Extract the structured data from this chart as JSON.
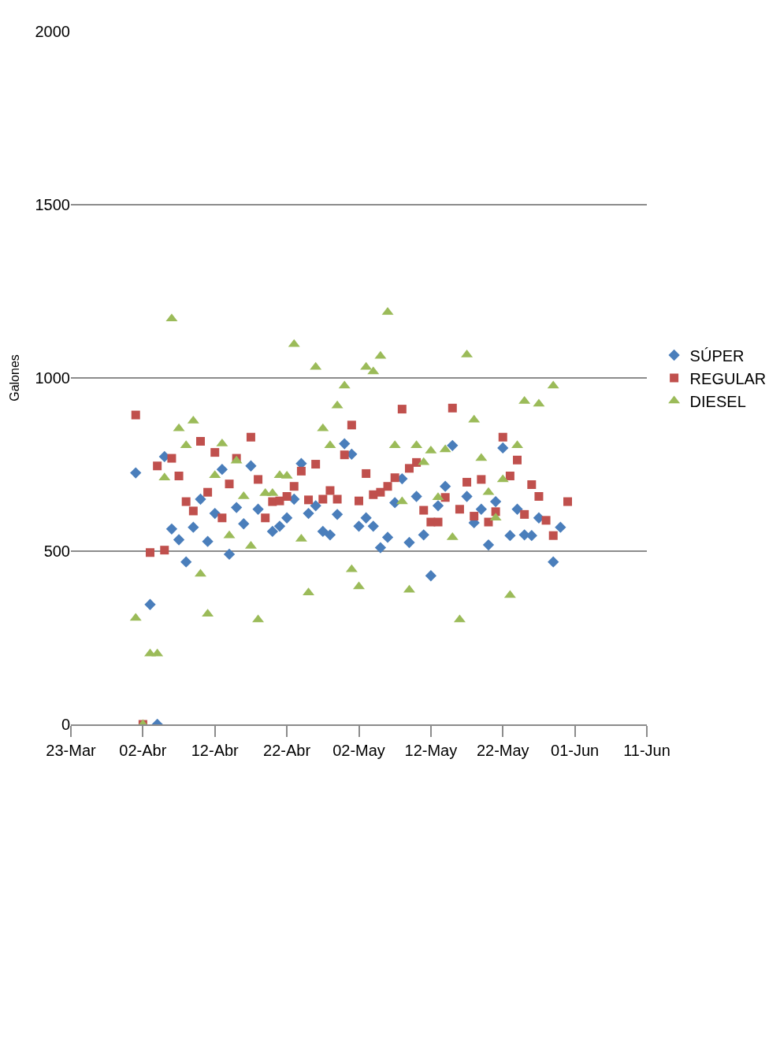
{
  "chart_data": {
    "type": "scatter",
    "ylabel": "Galones",
    "xlim": [
      "--03-23",
      "--06-11"
    ],
    "xticks": [
      {
        "value": "--03-23",
        "label": "23-Mar"
      },
      {
        "value": "--04-02",
        "label": "02-Abr"
      },
      {
        "value": "--04-12",
        "label": "12-Abr"
      },
      {
        "value": "--04-22",
        "label": "22-Abr"
      },
      {
        "value": "--05-02",
        "label": "02-May"
      },
      {
        "value": "--05-12",
        "label": "12-May"
      },
      {
        "value": "--05-22",
        "label": "22-May"
      },
      {
        "value": "--06-01",
        "label": "01-Jun"
      },
      {
        "value": "--06-11",
        "label": "11-Jun"
      }
    ],
    "ylim": [
      0,
      2000
    ],
    "yticks": [
      0,
      500,
      1000,
      1500,
      2000
    ],
    "grid": "y",
    "legend": "right",
    "series": [
      {
        "name": "SÚPER",
        "color": "#4a7ebb",
        "marker": "diamond",
        "x": [
          "--04-01",
          "--04-03",
          "--04-04",
          "--04-05",
          "--04-06",
          "--04-07",
          "--04-08",
          "--04-09",
          "--04-10",
          "--04-11",
          "--04-12",
          "--04-13",
          "--04-14",
          "--04-15",
          "--04-16",
          "--04-17",
          "--04-18",
          "--04-20",
          "--04-21",
          "--04-22",
          "--04-23",
          "--04-24",
          "--04-25",
          "--04-26",
          "--04-27",
          "--04-28",
          "--04-29",
          "--04-30",
          "--05-01",
          "--05-02",
          "--05-03",
          "--05-04",
          "--05-05",
          "--05-06",
          "--05-07",
          "--05-08",
          "--05-09",
          "--05-10",
          "--05-11",
          "--05-12",
          "--05-13",
          "--05-14",
          "--05-15",
          "--05-17",
          "--05-18",
          "--05-19",
          "--05-20",
          "--05-21",
          "--05-22",
          "--05-23",
          "--05-24",
          "--05-25",
          "--05-26",
          "--05-27",
          "--05-29",
          "--05-30"
        ],
        "values": [
          726,
          346,
          0,
          773,
          564,
          533,
          469,
          569,
          650,
          528,
          609,
          736,
          491,
          626,
          579,
          746,
          621,
          557,
          572,
          596,
          650,
          753,
          609,
          631,
          557,
          547,
          606,
          810,
          780,
          572,
          596,
          572,
          510,
          540,
          640,
          709,
          525,
          658,
          547,
          429,
          631,
          687,
          805,
          658,
          582,
          621,
          518,
          643,
          798,
          545,
          621,
          547,
          545,
          596,
          469,
          569
        ]
      },
      {
        "name": "REGULAR",
        "color": "#c0504d",
        "marker": "square",
        "x": [
          "--04-01",
          "--04-02",
          "--04-03",
          "--04-04",
          "--04-05",
          "--04-06",
          "--04-07",
          "--04-08",
          "--04-09",
          "--04-10",
          "--04-11",
          "--04-12",
          "--04-13",
          "--04-14",
          "--04-15",
          "--04-17",
          "--04-18",
          "--04-19",
          "--04-20",
          "--04-21",
          "--04-22",
          "--04-23",
          "--04-24",
          "--04-25",
          "--04-26",
          "--04-27",
          "--04-28",
          "--04-29",
          "--04-30",
          "--05-01",
          "--05-02",
          "--05-03",
          "--05-04",
          "--05-05",
          "--05-06",
          "--05-07",
          "--05-08",
          "--05-09",
          "--05-10",
          "--05-11",
          "--05-12",
          "--05-13",
          "--05-14",
          "--05-15",
          "--05-16",
          "--05-17",
          "--05-18",
          "--05-19",
          "--05-20",
          "--05-21",
          "--05-22",
          "--05-23",
          "--05-24",
          "--05-25",
          "--05-26",
          "--05-27",
          "--05-28",
          "--05-29",
          "--05-31"
        ],
        "values": [
          893,
          0,
          496,
          746,
          503,
          768,
          717,
          643,
          616,
          817,
          670,
          785,
          596,
          694,
          768,
          829,
          707,
          596,
          643,
          645,
          658,
          687,
          731,
          648,
          751,
          650,
          675,
          650,
          778,
          864,
          645,
          724,
          663,
          670,
          687,
          712,
          910,
          739,
          756,
          618,
          584,
          584,
          655,
          913,
          621,
          699,
          601,
          707,
          584,
          614,
          829,
          717,
          763,
          606,
          692,
          658,
          589,
          545,
          643
        ]
      },
      {
        "name": "DIESEL",
        "color": "#9bbb59",
        "marker": "triangle",
        "x": [
          "--04-01",
          "--04-02",
          "--04-03",
          "--04-04",
          "--04-05",
          "--04-06",
          "--04-07",
          "--04-08",
          "--04-09",
          "--04-10",
          "--04-11",
          "--04-12",
          "--04-13",
          "--04-14",
          "--04-15",
          "--04-16",
          "--04-17",
          "--04-18",
          "--04-19",
          "--04-20",
          "--04-21",
          "--04-22",
          "--04-23",
          "--04-24",
          "--04-25",
          "--04-26",
          "--04-27",
          "--04-28",
          "--04-29",
          "--04-30",
          "--05-01",
          "--05-02",
          "--05-03",
          "--05-04",
          "--05-05",
          "--05-06",
          "--05-07",
          "--05-08",
          "--05-09",
          "--05-10",
          "--05-11",
          "--05-12",
          "--05-13",
          "--05-14",
          "--05-15",
          "--05-16",
          "--05-17",
          "--05-18",
          "--05-19",
          "--05-20",
          "--05-21",
          "--05-22",
          "--05-23",
          "--05-24",
          "--05-25",
          "--05-27",
          "--05-29"
        ],
        "values": [
          307,
          0,
          204,
          204,
          712,
          1171,
          854,
          805,
          876,
          434,
          319,
          719,
          810,
          545,
          761,
          658,
          515,
          302,
          667,
          667,
          719,
          717,
          1097,
          535,
          380,
          1031,
          854,
          805,
          920,
          977,
          447,
          398,
          1031,
          1018,
          1063,
          1190,
          805,
          643,
          388,
          805,
          756,
          790,
          655,
          793,
          540,
          302,
          1067,
          879,
          768,
          670,
          596,
          707,
          373,
          805,
          933,
          925,
          977
        ]
      }
    ]
  }
}
